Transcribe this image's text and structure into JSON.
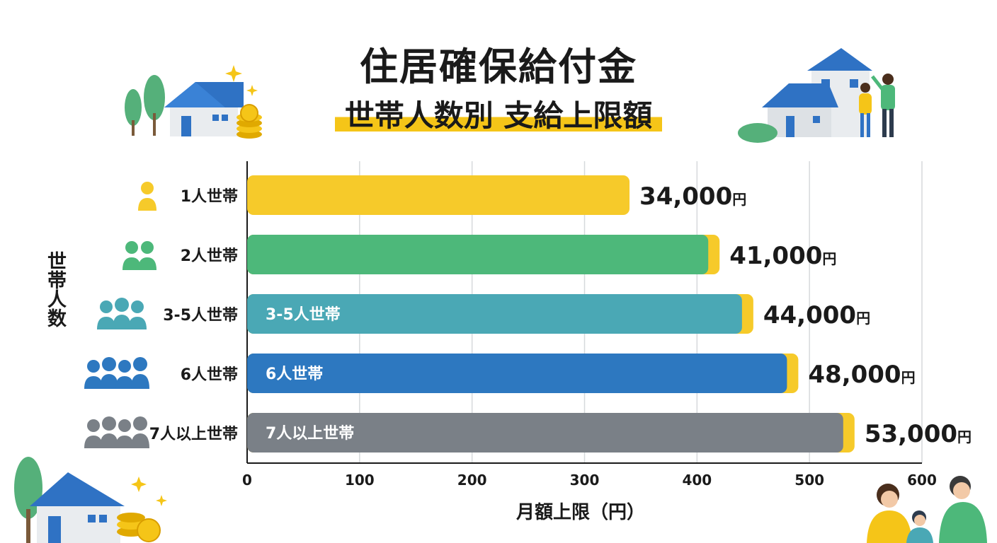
{
  "chart_data": {
    "type": "bar",
    "orientation": "horizontal",
    "title": "住居確保給付金",
    "subtitle": "世帯人数別 支給上限額",
    "ylabel": "世帯人数",
    "xlabel": "月額上限（円）",
    "xlim": [
      0,
      600
    ],
    "xticks": [
      "0",
      "100",
      "200",
      "300",
      "400",
      "500",
      "600"
    ],
    "grid": true,
    "categories": [
      "1人世帯",
      "2人世帯",
      "3-5人世帯",
      "6人世帯",
      "7人以上世帯"
    ],
    "values": [
      34000,
      41000,
      44000,
      48000,
      53000
    ],
    "value_labels": [
      "34,000",
      "41,000",
      "44,000",
      "48,000",
      "53,000"
    ],
    "value_unit": "円",
    "inside_labels": [
      "",
      "",
      "3-5人世帯",
      "6人世帯",
      "7人以上世帯"
    ],
    "bar_colors": [
      "#f6ca2a",
      "#4db87a",
      "#4aa8b5",
      "#2d78c0",
      "#7a8087"
    ],
    "accent_color": "#f6ca2a"
  },
  "icons": [
    "tree-icon",
    "house-icon",
    "coin-stack-icon",
    "sparkle-icon",
    "family-icon",
    "person-icon"
  ]
}
